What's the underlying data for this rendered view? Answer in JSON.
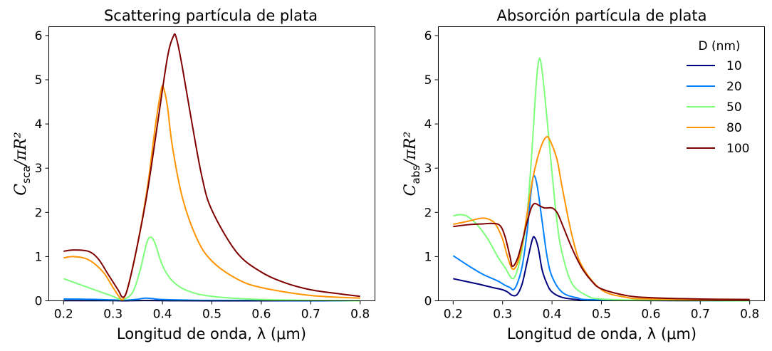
{
  "chart_data": [
    {
      "type": "line",
      "title": "Scattering partícula de plata",
      "xlabel": "Longitud de onda, λ (μm)",
      "ylabel": {
        "main": "C",
        "sub": "sca",
        "rest": "/πR²"
      },
      "xlim": [
        0.17,
        0.83
      ],
      "ylim": [
        0,
        6.2
      ],
      "xticks": [
        0.2,
        0.3,
        0.4,
        0.5,
        0.6,
        0.7,
        0.8
      ],
      "xtick_labels": [
        "0.2",
        "0.3",
        "0.4",
        "0.5",
        "0.6",
        "0.7",
        "0.8"
      ],
      "yticks": [
        0,
        1,
        2,
        3,
        4,
        5,
        6
      ],
      "ytick_labels": [
        "0",
        "1",
        "2",
        "3",
        "4",
        "5",
        "6"
      ],
      "series": [
        {
          "name": "10",
          "color": "#00007f",
          "points": [
            [
              0.2,
              0.005
            ],
            [
              0.3,
              0.003
            ],
            [
              0.32,
              0.001
            ],
            [
              0.36,
              0.006
            ],
            [
              0.4,
              0.003
            ],
            [
              0.5,
              0.001
            ],
            [
              0.8,
              0.0
            ]
          ]
        },
        {
          "name": "20",
          "color": "#0080ff",
          "points": [
            [
              0.2,
              0.04
            ],
            [
              0.25,
              0.035
            ],
            [
              0.3,
              0.02
            ],
            [
              0.32,
              0.01
            ],
            [
              0.345,
              0.03
            ],
            [
              0.365,
              0.06
            ],
            [
              0.38,
              0.05
            ],
            [
              0.4,
              0.03
            ],
            [
              0.5,
              0.01
            ],
            [
              0.8,
              0.002
            ]
          ]
        },
        {
          "name": "50",
          "color": "#7dff7a",
          "points": [
            [
              0.2,
              0.5
            ],
            [
              0.22,
              0.42
            ],
            [
              0.25,
              0.3
            ],
            [
              0.28,
              0.18
            ],
            [
              0.3,
              0.1
            ],
            [
              0.32,
              0.03
            ],
            [
              0.34,
              0.2
            ],
            [
              0.355,
              0.7
            ],
            [
              0.368,
              1.3
            ],
            [
              0.376,
              1.44
            ],
            [
              0.385,
              1.3
            ],
            [
              0.4,
              0.8
            ],
            [
              0.42,
              0.45
            ],
            [
              0.45,
              0.23
            ],
            [
              0.5,
              0.1
            ],
            [
              0.6,
              0.03
            ],
            [
              0.8,
              0.0
            ]
          ]
        },
        {
          "name": "80",
          "color": "#ff9400",
          "points": [
            [
              0.2,
              0.97
            ],
            [
              0.22,
              1.0
            ],
            [
              0.25,
              0.93
            ],
            [
              0.28,
              0.65
            ],
            [
              0.3,
              0.3
            ],
            [
              0.315,
              0.05
            ],
            [
              0.32,
              0.03
            ],
            [
              0.33,
              0.3
            ],
            [
              0.35,
              1.3
            ],
            [
              0.37,
              2.6
            ],
            [
              0.385,
              3.9
            ],
            [
              0.397,
              4.75
            ],
            [
              0.402,
              4.82
            ],
            [
              0.41,
              4.4
            ],
            [
              0.42,
              3.5
            ],
            [
              0.44,
              2.35
            ],
            [
              0.47,
              1.4
            ],
            [
              0.5,
              0.9
            ],
            [
              0.55,
              0.5
            ],
            [
              0.6,
              0.3
            ],
            [
              0.7,
              0.12
            ],
            [
              0.8,
              0.06
            ]
          ]
        },
        {
          "name": "100",
          "color": "#7f0000",
          "points": [
            [
              0.2,
              1.12
            ],
            [
              0.22,
              1.15
            ],
            [
              0.25,
              1.12
            ],
            [
              0.27,
              0.95
            ],
            [
              0.29,
              0.6
            ],
            [
              0.31,
              0.25
            ],
            [
              0.32,
              0.08
            ],
            [
              0.33,
              0.3
            ],
            [
              0.35,
              1.3
            ],
            [
              0.37,
              2.5
            ],
            [
              0.39,
              4.0
            ],
            [
              0.41,
              5.5
            ],
            [
              0.422,
              5.98
            ],
            [
              0.428,
              5.95
            ],
            [
              0.44,
              5.3
            ],
            [
              0.46,
              4.0
            ],
            [
              0.48,
              2.8
            ],
            [
              0.5,
              2.05
            ],
            [
              0.55,
              1.1
            ],
            [
              0.6,
              0.65
            ],
            [
              0.65,
              0.4
            ],
            [
              0.7,
              0.25
            ],
            [
              0.75,
              0.17
            ],
            [
              0.8,
              0.1
            ]
          ]
        }
      ]
    },
    {
      "type": "line",
      "title": "Absorción partícula de plata",
      "xlabel": "Longitud de onda, λ (μm)",
      "ylabel": {
        "main": "C",
        "sub": "abs",
        "rest": "/πR²"
      },
      "xlim": [
        0.17,
        0.83
      ],
      "ylim": [
        0,
        6.2
      ],
      "xticks": [
        0.2,
        0.3,
        0.4,
        0.5,
        0.6,
        0.7,
        0.8
      ],
      "xtick_labels": [
        "0.2",
        "0.3",
        "0.4",
        "0.5",
        "0.6",
        "0.7",
        "0.8"
      ],
      "yticks": [
        0,
        1,
        2,
        3,
        4,
        5,
        6
      ],
      "ytick_labels": [
        "0",
        "1",
        "2",
        "3",
        "4",
        "5",
        "6"
      ],
      "legend": {
        "title": "D (nm)",
        "location": "upper right",
        "entries": [
          "10",
          "20",
          "50",
          "80",
          "100"
        ]
      },
      "series": [
        {
          "name": "10",
          "color": "#00007f",
          "points": [
            [
              0.2,
              0.5
            ],
            [
              0.25,
              0.38
            ],
            [
              0.28,
              0.3
            ],
            [
              0.3,
              0.25
            ],
            [
              0.31,
              0.2
            ],
            [
              0.32,
              0.12
            ],
            [
              0.33,
              0.15
            ],
            [
              0.34,
              0.4
            ],
            [
              0.35,
              0.9
            ],
            [
              0.36,
              1.38
            ],
            [
              0.365,
              1.43
            ],
            [
              0.372,
              1.2
            ],
            [
              0.38,
              0.7
            ],
            [
              0.39,
              0.38
            ],
            [
              0.4,
              0.2
            ],
            [
              0.42,
              0.08
            ],
            [
              0.45,
              0.03
            ],
            [
              0.5,
              0.01
            ],
            [
              0.8,
              0.0
            ]
          ]
        },
        {
          "name": "20",
          "color": "#0080ff",
          "points": [
            [
              0.2,
              1.02
            ],
            [
              0.23,
              0.8
            ],
            [
              0.26,
              0.6
            ],
            [
              0.29,
              0.45
            ],
            [
              0.305,
              0.35
            ],
            [
              0.315,
              0.3
            ],
            [
              0.322,
              0.25
            ],
            [
              0.33,
              0.4
            ],
            [
              0.34,
              0.8
            ],
            [
              0.35,
              1.6
            ],
            [
              0.358,
              2.5
            ],
            [
              0.363,
              2.83
            ],
            [
              0.37,
              2.6
            ],
            [
              0.38,
              1.8
            ],
            [
              0.39,
              1.0
            ],
            [
              0.4,
              0.55
            ],
            [
              0.42,
              0.2
            ],
            [
              0.45,
              0.07
            ],
            [
              0.5,
              0.02
            ],
            [
              0.8,
              0.0
            ]
          ]
        },
        {
          "name": "50",
          "color": "#7dff7a",
          "points": [
            [
              0.2,
              1.92
            ],
            [
              0.215,
              1.95
            ],
            [
              0.23,
              1.9
            ],
            [
              0.25,
              1.7
            ],
            [
              0.27,
              1.4
            ],
            [
              0.29,
              1.0
            ],
            [
              0.305,
              0.75
            ],
            [
              0.32,
              0.5
            ],
            [
              0.33,
              0.7
            ],
            [
              0.34,
              1.2
            ],
            [
              0.35,
              2.0
            ],
            [
              0.36,
              3.5
            ],
            [
              0.368,
              4.9
            ],
            [
              0.374,
              5.47
            ],
            [
              0.38,
              5.2
            ],
            [
              0.39,
              4.1
            ],
            [
              0.4,
              2.9
            ],
            [
              0.41,
              1.8
            ],
            [
              0.42,
              1.1
            ],
            [
              0.44,
              0.4
            ],
            [
              0.47,
              0.12
            ],
            [
              0.5,
              0.04
            ],
            [
              0.6,
              0.01
            ],
            [
              0.8,
              0.0
            ]
          ]
        },
        {
          "name": "80",
          "color": "#ff9400",
          "points": [
            [
              0.2,
              1.73
            ],
            [
              0.23,
              1.8
            ],
            [
              0.26,
              1.87
            ],
            [
              0.28,
              1.8
            ],
            [
              0.29,
              1.65
            ],
            [
              0.3,
              1.4
            ],
            [
              0.31,
              1.0
            ],
            [
              0.32,
              0.72
            ],
            [
              0.33,
              0.85
            ],
            [
              0.34,
              1.3
            ],
            [
              0.35,
              2.0
            ],
            [
              0.36,
              2.7
            ],
            [
              0.37,
              3.2
            ],
            [
              0.38,
              3.55
            ],
            [
              0.388,
              3.7
            ],
            [
              0.395,
              3.65
            ],
            [
              0.41,
              3.2
            ],
            [
              0.42,
              2.6
            ],
            [
              0.44,
              1.5
            ],
            [
              0.46,
              0.8
            ],
            [
              0.5,
              0.25
            ],
            [
              0.55,
              0.08
            ],
            [
              0.6,
              0.04
            ],
            [
              0.8,
              0.01
            ]
          ]
        },
        {
          "name": "100",
          "color": "#7f0000",
          "points": [
            [
              0.2,
              1.68
            ],
            [
              0.23,
              1.72
            ],
            [
              0.26,
              1.74
            ],
            [
              0.28,
              1.75
            ],
            [
              0.295,
              1.7
            ],
            [
              0.305,
              1.45
            ],
            [
              0.315,
              1.0
            ],
            [
              0.32,
              0.78
            ],
            [
              0.33,
              0.95
            ],
            [
              0.34,
              1.35
            ],
            [
              0.35,
              1.8
            ],
            [
              0.358,
              2.1
            ],
            [
              0.365,
              2.2
            ],
            [
              0.375,
              2.15
            ],
            [
              0.385,
              2.1
            ],
            [
              0.4,
              2.1
            ],
            [
              0.41,
              2.0
            ],
            [
              0.42,
              1.75
            ],
            [
              0.44,
              1.2
            ],
            [
              0.46,
              0.75
            ],
            [
              0.48,
              0.45
            ],
            [
              0.5,
              0.27
            ],
            [
              0.55,
              0.12
            ],
            [
              0.6,
              0.07
            ],
            [
              0.7,
              0.04
            ],
            [
              0.8,
              0.03
            ]
          ]
        }
      ]
    }
  ]
}
